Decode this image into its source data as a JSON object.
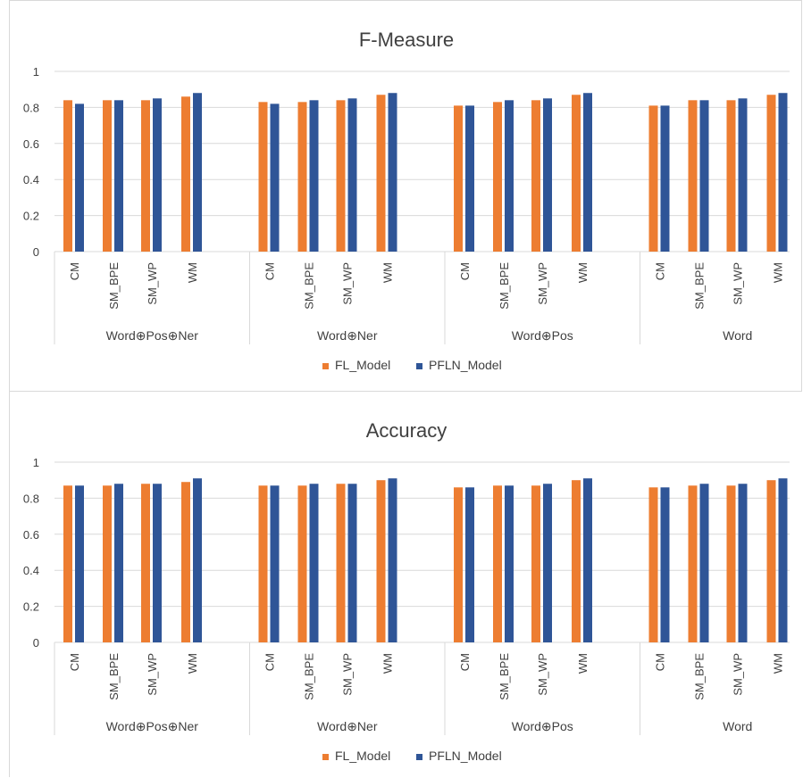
{
  "colors": {
    "fl": "#ED7D31",
    "pfln": "#2F5597",
    "grid": "#d9d9d9",
    "text": "#404040"
  },
  "chart_data": [
    {
      "type": "bar",
      "title": "F-Measure",
      "ylim": [
        0,
        1
      ],
      "yticks": [
        "0",
        "0.2",
        "0.4",
        "0.6",
        "0.8",
        "1"
      ],
      "groups": [
        "Word⊕Pos⊕Ner",
        "Word⊕Ner",
        "Word⊕Pos",
        "Word"
      ],
      "categories": [
        "CM",
        "SM_BPE",
        "SM_WP",
        "WM"
      ],
      "legend": "bottom",
      "series": [
        {
          "name": "FL_Model",
          "values": [
            [
              0.84,
              0.84,
              0.84,
              0.86
            ],
            [
              0.83,
              0.83,
              0.84,
              0.87
            ],
            [
              0.81,
              0.83,
              0.84,
              0.87
            ],
            [
              0.81,
              0.84,
              0.84,
              0.87
            ]
          ]
        },
        {
          "name": "PFLN_Model",
          "values": [
            [
              0.82,
              0.84,
              0.85,
              0.88
            ],
            [
              0.82,
              0.84,
              0.85,
              0.88
            ],
            [
              0.81,
              0.84,
              0.85,
              0.88
            ],
            [
              0.81,
              0.84,
              0.85,
              0.88
            ]
          ]
        }
      ]
    },
    {
      "type": "bar",
      "title": "Accuracy",
      "ylim": [
        0,
        1
      ],
      "yticks": [
        "0",
        "0.2",
        "0.4",
        "0.6",
        "0.8",
        "1"
      ],
      "groups": [
        "Word⊕Pos⊕Ner",
        "Word⊕Ner",
        "Word⊕Pos",
        "Word"
      ],
      "categories": [
        "CM",
        "SM_BPE",
        "SM_WP",
        "WM"
      ],
      "legend": "bottom",
      "series": [
        {
          "name": "FL_Model",
          "values": [
            [
              0.87,
              0.87,
              0.88,
              0.89
            ],
            [
              0.87,
              0.87,
              0.88,
              0.9
            ],
            [
              0.86,
              0.87,
              0.87,
              0.9
            ],
            [
              0.86,
              0.87,
              0.87,
              0.9
            ]
          ]
        },
        {
          "name": "PFLN_Model",
          "values": [
            [
              0.87,
              0.88,
              0.88,
              0.91
            ],
            [
              0.87,
              0.88,
              0.88,
              0.91
            ],
            [
              0.86,
              0.87,
              0.88,
              0.91
            ],
            [
              0.86,
              0.88,
              0.88,
              0.91
            ]
          ]
        }
      ]
    }
  ]
}
